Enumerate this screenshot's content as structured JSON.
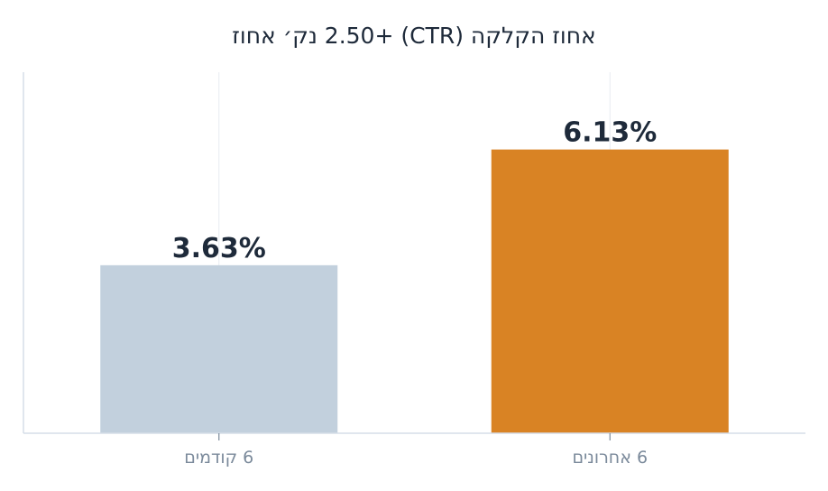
{
  "chart_data": {
    "type": "bar",
    "title": "אחוז הקלקה (CTR)   +2.50 נק׳ אחוז",
    "categories": [
      "6 קודמים",
      "6 אחרונים"
    ],
    "values": [
      3.63,
      6.13
    ],
    "value_labels": [
      "3.63%",
      "6.13%"
    ],
    "ylim": [
      0,
      7.8
    ],
    "grid": "vertical",
    "legend": "none",
    "colors": [
      "#c2d0dd",
      "#d98324"
    ]
  }
}
